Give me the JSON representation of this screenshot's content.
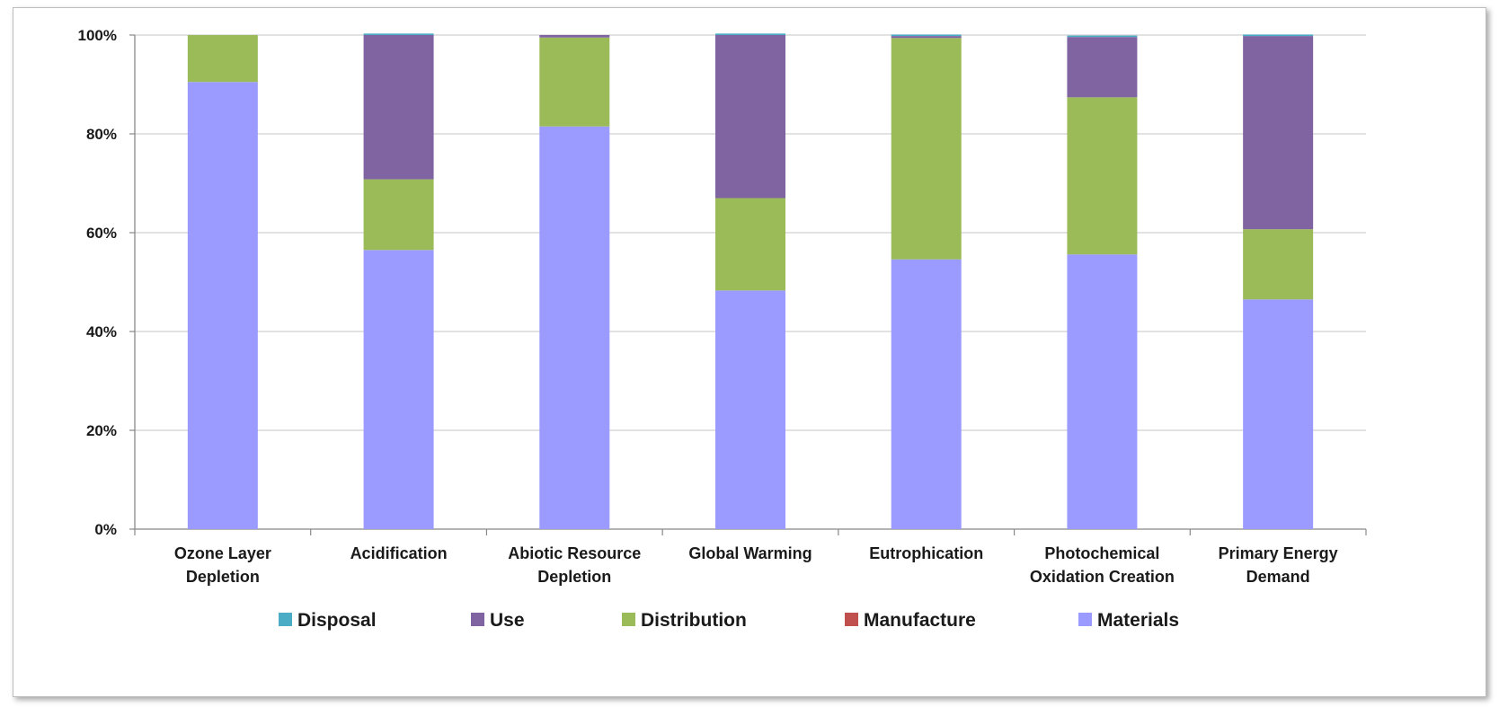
{
  "chart_data": {
    "type": "bar",
    "stacked": true,
    "normalized": true,
    "categories": [
      [
        "Ozone Layer",
        "Depletion"
      ],
      [
        "Acidification"
      ],
      [
        "Abiotic Resource",
        "Depletion"
      ],
      [
        "Global Warming"
      ],
      [
        "Eutrophication"
      ],
      [
        "Photochemical",
        "Oxidation Creation"
      ],
      [
        "Primary Energy",
        "Demand"
      ]
    ],
    "y_ticks": [
      "0%",
      "20%",
      "40%",
      "60%",
      "80%",
      "100%"
    ],
    "ylim": [
      0,
      100
    ],
    "grid": true,
    "legend_placement": "bottom",
    "series": [
      {
        "name": "Materials",
        "color": "#9b9bff",
        "values": [
          90.5,
          56.5,
          81.5,
          48.3,
          54.6,
          55.6,
          46.5
        ]
      },
      {
        "name": "Manufacture",
        "color": "#c0504d",
        "values": [
          0,
          0,
          0,
          0,
          0,
          0,
          0
        ]
      },
      {
        "name": "Distribution",
        "color": "#9bbb59",
        "values": [
          9.5,
          14.3,
          18.0,
          18.7,
          44.8,
          31.8,
          14.2
        ]
      },
      {
        "name": "Use",
        "color": "#8064a2",
        "values": [
          0,
          29.2,
          0.5,
          33.0,
          0.4,
          12.2,
          39.1
        ]
      },
      {
        "name": "Disposal",
        "color": "#4bacc6",
        "values": [
          0,
          0.3,
          0,
          0.3,
          0.3,
          0.3,
          0.3
        ]
      }
    ],
    "legend_order": [
      "Disposal",
      "Use",
      "Distribution",
      "Manufacture",
      "Materials"
    ]
  }
}
